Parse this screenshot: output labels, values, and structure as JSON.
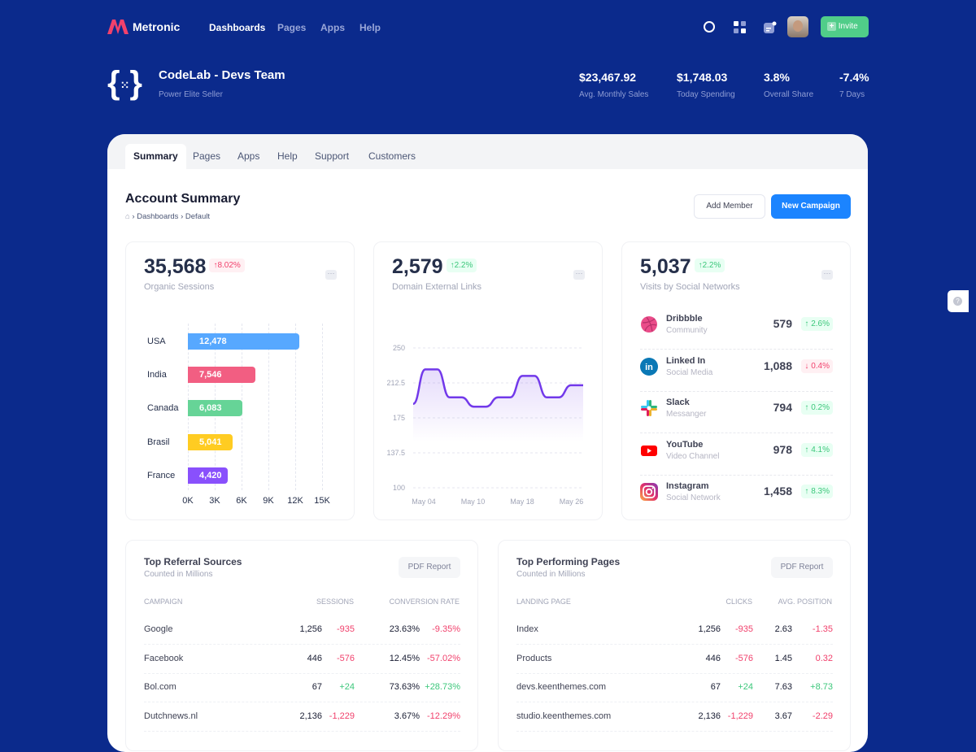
{
  "header": {
    "brand": "Metronic",
    "nav": [
      "Dashboards",
      "Pages",
      "Apps",
      "Help"
    ],
    "invite": "Invite"
  },
  "team": {
    "name": "CodeLab - Devs Team",
    "subtitle": "Power Elite Seller"
  },
  "stats": [
    {
      "value": "$23,467.92",
      "label": "Avg. Monthly Sales"
    },
    {
      "value": "$1,748.03",
      "label": "Today Spending"
    },
    {
      "value": "3.8%",
      "label": "Overall Share"
    },
    {
      "value": "-7.4%",
      "label": "7 Days"
    }
  ],
  "tabs": [
    "Summary",
    "Pages",
    "Apps",
    "Help",
    "Support",
    "Customers"
  ],
  "page": {
    "title": "Account Summary",
    "breadcrumb": [
      "Dashboards",
      "Default"
    ],
    "add_member": "Add Member",
    "new_campaign": "New Campaign"
  },
  "cards": {
    "organic": {
      "value": "35,568",
      "change": "8.02%",
      "label": "Organic Sessions"
    },
    "links": {
      "value": "2,579",
      "change": "2.2%",
      "label": "Domain External Links"
    },
    "social": {
      "value": "5,037",
      "change": "2.2%",
      "label": "Visits by Social Networks"
    }
  },
  "chart_data": [
    {
      "type": "bar",
      "orientation": "horizontal",
      "categories": [
        "USA",
        "India",
        "Canada",
        "Brasil",
        "France"
      ],
      "values": [
        12478,
        7546,
        6083,
        5041,
        4420
      ],
      "value_labels": [
        "12,478",
        "7,546",
        "6,083",
        "5,041",
        "4,420"
      ],
      "colors": [
        "#57a8ff",
        "#f25e82",
        "#66d497",
        "#ffcc22",
        "#8950fc"
      ],
      "xticks": [
        "0K",
        "3K",
        "6K",
        "9K",
        "12K",
        "15K"
      ],
      "xlim": [
        0,
        15000
      ],
      "grid": true
    },
    {
      "type": "area",
      "x": [
        "May 04",
        "",
        "",
        "",
        "",
        "May 10",
        "",
        "",
        "",
        "",
        "May 18",
        "",
        "",
        "",
        "May 26"
      ],
      "xticks": [
        "May 04",
        "May 10",
        "May 18",
        "May 26"
      ],
      "values": [
        190,
        227,
        227,
        197,
        197,
        187,
        187,
        197,
        197,
        220,
        220,
        197,
        197,
        210,
        210
      ],
      "yticks": [
        "250",
        "212.5",
        "175",
        "137.5",
        "100"
      ],
      "ylim": [
        100,
        250
      ],
      "color": "#7239ea",
      "grid": true
    }
  ],
  "social": [
    {
      "name": "Dribbble",
      "desc": "Community",
      "value": "579",
      "change": "2.6%",
      "dir": "up",
      "icon": "dribbble-icon"
    },
    {
      "name": "Linked In",
      "desc": "Social Media",
      "value": "1,088",
      "change": "0.4%",
      "dir": "down",
      "icon": "linkedin-icon"
    },
    {
      "name": "Slack",
      "desc": "Messanger",
      "value": "794",
      "change": "0.2%",
      "dir": "up",
      "icon": "slack-icon"
    },
    {
      "name": "YouTube",
      "desc": "Video Channel",
      "value": "978",
      "change": "4.1%",
      "dir": "up",
      "icon": "youtube-icon"
    },
    {
      "name": "Instagram",
      "desc": "Social Network",
      "value": "1,458",
      "change": "8.3%",
      "dir": "up",
      "icon": "instagram-icon"
    }
  ],
  "referral": {
    "title": "Top Referral Sources",
    "subtitle": "Counted in Millions",
    "pdf": "PDF Report",
    "headers": [
      "CAMPAIGN",
      "SESSIONS",
      "CONVERSION RATE"
    ],
    "rows": [
      [
        "Google",
        "1,256",
        "-935",
        "23.63%",
        "-9.35%"
      ],
      [
        "Facebook",
        "446",
        "-576",
        "12.45%",
        "-57.02%"
      ],
      [
        "Bol.com",
        "67",
        "+24",
        "73.63%",
        "+28.73%"
      ],
      [
        "Dutchnews.nl",
        "2,136",
        "-1,229",
        "3.67%",
        "-12.29%"
      ]
    ]
  },
  "pages": {
    "title": "Top Performing Pages",
    "subtitle": "Counted in Millions",
    "pdf": "PDF Report",
    "headers": [
      "LANDING PAGE",
      "CLICKS",
      "AVG. POSITION"
    ],
    "rows": [
      [
        "Index",
        "1,256",
        "-935",
        "2.63",
        "-1.35"
      ],
      [
        "Products",
        "446",
        "-576",
        "1.45",
        "0.32"
      ],
      [
        "devs.keenthemes.com",
        "67",
        "+24",
        "7.63",
        "+8.73"
      ],
      [
        "studio.keenthemes.com",
        "2,136",
        "-1,229",
        "3.67",
        "-2.29"
      ]
    ]
  }
}
